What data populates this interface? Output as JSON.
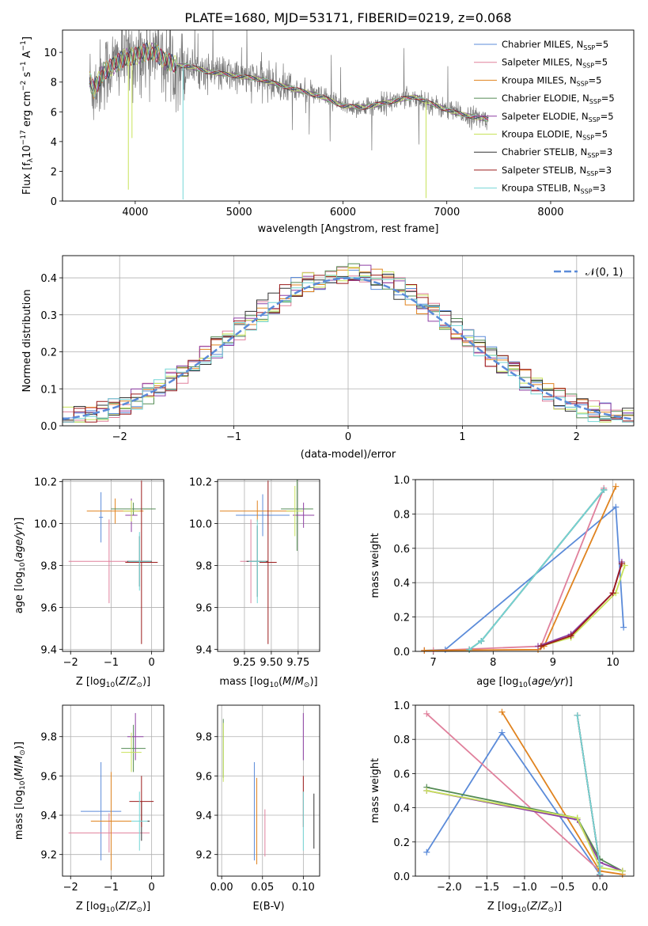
{
  "figure": {
    "title": "PLATE=1680, MJD=53171, FIBERID=0219, z=0.068"
  },
  "colors": {
    "Chabrier MILES": "#5b8bd9",
    "Salpeter MILES": "#e0809c",
    "Kroupa MILES": "#e0831f",
    "Chabrier ELODIE": "#548b54",
    "Salpeter ELODIE": "#8e3fa3",
    "Kroupa ELODIE": "#c8e35a",
    "Chabrier STELIB": "#333333",
    "Salpeter STELIB": "#9b1b1b",
    "Kroupa STELIB": "#74d6d6",
    "data": "#7a7a7a",
    "gaussian": "#5b8bd9"
  },
  "chart_data": [
    {
      "id": "spectrum",
      "type": "line",
      "title": "PLATE=1680, MJD=53171, FIBERID=0219, z=0.068",
      "xlabel": "wavelength [Angstrom, rest frame]",
      "ylabel": "Flux [f_λ 10^-17 erg cm^-2 s^-1 A^-1]",
      "xlim": [
        3300,
        8800
      ],
      "ylim": [
        0,
        11.5
      ],
      "xticks": [
        4000,
        5000,
        6000,
        7000,
        8000
      ],
      "yticks": [
        0,
        2,
        4,
        6,
        8,
        10
      ],
      "legend_position": "right",
      "grid": false,
      "continuum": {
        "x": [
          3560,
          3600,
          3700,
          3800,
          3900,
          4000,
          4100,
          4200,
          4300,
          4400,
          4500,
          4700,
          5000,
          5200,
          5500,
          5800,
          6000,
          6200,
          6400,
          6600,
          6700,
          6900,
          7100,
          7300,
          7400
        ],
        "y": [
          8.2,
          7.5,
          8.7,
          9.2,
          9.6,
          9.8,
          10.0,
          10.0,
          9.4,
          9.1,
          9.1,
          8.7,
          8.4,
          8.2,
          7.6,
          7.0,
          6.4,
          6.3,
          6.6,
          6.9,
          7.0,
          6.4,
          5.9,
          5.6,
          5.5
        ]
      },
      "absorption_lines": [
        {
          "x": 3934,
          "depth": 8.9,
          "series": "Kroupa ELODIE"
        },
        {
          "x": 3969,
          "depth": 5.5,
          "series": "Kroupa ELODIE"
        },
        {
          "x": 4460,
          "depth": 9.0,
          "series": "Kroupa STELIB"
        },
        {
          "x": 6800,
          "depth": 6.5,
          "series": "Kroupa ELODIE"
        }
      ],
      "series": [
        {
          "name": "Chabrier MILES, N_SSP=5",
          "key": "Chabrier MILES"
        },
        {
          "name": "Salpeter MILES, N_SSP=5",
          "key": "Salpeter MILES"
        },
        {
          "name": "Kroupa MILES, N_SSP=5",
          "key": "Kroupa MILES"
        },
        {
          "name": "Chabrier ELODIE, N_SSP=5",
          "key": "Chabrier ELODIE"
        },
        {
          "name": "Salpeter ELODIE, N_SSP=5",
          "key": "Salpeter ELODIE"
        },
        {
          "name": "Kroupa ELODIE, N_SSP=5",
          "key": "Kroupa ELODIE"
        },
        {
          "name": "Chabrier STELIB, N_SSP=3",
          "key": "Chabrier STELIB"
        },
        {
          "name": "Salpeter STELIB, N_SSP=3",
          "key": "Salpeter STELIB"
        },
        {
          "name": "Kroupa STELIB, N_SSP=3",
          "key": "Kroupa STELIB"
        }
      ]
    },
    {
      "id": "residuals",
      "type": "line",
      "xlabel": "(data-model)/error",
      "ylabel": "Normed distribution",
      "xlim": [
        -2.5,
        2.5
      ],
      "ylim": [
        0,
        0.46
      ],
      "xticks": [
        -2,
        -1,
        0,
        1,
        2
      ],
      "yticks": [
        0.0,
        0.1,
        0.2,
        0.3,
        0.4
      ],
      "grid": true,
      "legend": "𝒩(0, 1)",
      "legend_position": "top-right",
      "gaussian": {
        "mu": 0,
        "sigma": 1
      }
    },
    {
      "id": "age_vs_Z",
      "type": "scatter",
      "xlabel": "Z [log10(Z/Z⊙)]",
      "ylabel": "age [log10(age/yr)]",
      "xlim": [
        -2.2,
        0.3
      ],
      "ylim": [
        9.39,
        10.21
      ],
      "xticks": [
        -2,
        -1,
        0
      ],
      "yticks": [
        9.4,
        9.6,
        9.8,
        10.0,
        10.2
      ],
      "grid": true,
      "points": [
        {
          "series": "Chabrier MILES",
          "x": -1.25,
          "y": 10.03,
          "xerr": 0.05,
          "yerr": 0.12
        },
        {
          "series": "Salpeter MILES",
          "x": -1.05,
          "y": 9.82,
          "xerr": 1.0,
          "yerr": 0.2
        },
        {
          "series": "Kroupa MILES",
          "x": -0.9,
          "y": 10.06,
          "xerr": 0.7,
          "yerr": 0.06
        },
        {
          "series": "Chabrier ELODIE",
          "x": -0.45,
          "y": 10.07,
          "xerr": 0.55,
          "yerr": 0.03
        },
        {
          "series": "Salpeter ELODIE",
          "x": -0.5,
          "y": 10.04,
          "xerr": 0.15,
          "yerr": 0.08
        },
        {
          "series": "Kroupa ELODIE",
          "x": -0.5,
          "y": 10.06,
          "xerr": 0.2,
          "yerr": 0.05
        },
        {
          "series": "Chabrier STELIB",
          "x": -0.3,
          "y": 9.82,
          "xerr": 0.3,
          "yerr": 0.12
        },
        {
          "series": "Salpeter STELIB",
          "x": -0.25,
          "y": 9.815,
          "xerr": 0.4,
          "yerr": 0.39
        },
        {
          "series": "Kroupa STELIB",
          "x": -0.3,
          "y": 9.82,
          "xerr": 0.28,
          "yerr": 0.14
        }
      ]
    },
    {
      "id": "age_vs_mass",
      "type": "scatter",
      "xlabel": "mass [log10(M/M⊙)]",
      "xlim": [
        9.0,
        9.95
      ],
      "ylim": [
        9.39,
        10.21
      ],
      "xticks": [
        9.25,
        9.5,
        9.75
      ],
      "yticks": [
        9.4,
        9.6,
        9.8,
        10.0,
        10.2
      ],
      "grid": true,
      "points": [
        {
          "series": "Chabrier MILES",
          "x": 9.42,
          "y": 10.04,
          "xerr": 0.25,
          "yerr": 0.1
        },
        {
          "series": "Salpeter MILES",
          "x": 9.31,
          "y": 9.82,
          "xerr": 0.1,
          "yerr": 0.2
        },
        {
          "series": "Kroupa MILES",
          "x": 9.37,
          "y": 10.06,
          "xerr": 0.35,
          "yerr": 0.05
        },
        {
          "series": "Chabrier ELODIE",
          "x": 9.74,
          "y": 10.07,
          "xerr": 0.15,
          "yerr": 0.2
        },
        {
          "series": "Salpeter ELODIE",
          "x": 9.8,
          "y": 10.04,
          "xerr": 0.1,
          "yerr": 0.06
        },
        {
          "series": "Kroupa ELODIE",
          "x": 9.72,
          "y": 10.06,
          "xerr": 0.08,
          "yerr": 0.12
        },
        {
          "series": "Chabrier STELIB",
          "x": 9.37,
          "y": 9.82,
          "xerr": 0.1,
          "yerr": 0.17
        },
        {
          "series": "Salpeter STELIB",
          "x": 9.47,
          "y": 9.815,
          "xerr": 0.08,
          "yerr": 0.39
        },
        {
          "series": "Kroupa STELIB",
          "x": 9.37,
          "y": 9.82,
          "xerr": 0.08,
          "yerr": 0.2
        }
      ]
    },
    {
      "id": "weight_vs_age",
      "type": "line",
      "xlabel": "age [log10(age/yr)]",
      "ylabel": "mass weight",
      "xlim": [
        6.7,
        10.35
      ],
      "ylim": [
        0,
        1.0
      ],
      "xticks": [
        7,
        8,
        9,
        10
      ],
      "yticks": [
        0.0,
        0.2,
        0.4,
        0.6,
        0.8,
        1.0
      ],
      "grid": true,
      "series": [
        {
          "key": "Chabrier MILES",
          "x": [
            6.85,
            7.2,
            10.05,
            10.18
          ],
          "y": [
            0.005,
            0.01,
            0.84,
            0.14
          ]
        },
        {
          "key": "Salpeter MILES",
          "x": [
            6.85,
            7.0,
            8.8,
            9.85
          ],
          "y": [
            0.005,
            0.005,
            0.03,
            0.95
          ]
        },
        {
          "key": "Kroupa MILES",
          "x": [
            6.85,
            8.75,
            8.85,
            10.05
          ],
          "y": [
            0.005,
            0.01,
            0.03,
            0.96
          ]
        },
        {
          "key": "Chabrier ELODIE",
          "x": [
            7.6,
            7.8,
            9.85
          ],
          "y": [
            0.01,
            0.06,
            0.94
          ]
        },
        {
          "key": "Salpeter ELODIE",
          "x": [
            8.75,
            9.3,
            10.0,
            10.15
          ],
          "y": [
            0.03,
            0.1,
            0.34,
            0.52
          ]
        },
        {
          "key": "Kroupa ELODIE",
          "x": [
            8.8,
            9.3,
            10.05,
            10.2
          ],
          "y": [
            0.03,
            0.08,
            0.34,
            0.5
          ]
        },
        {
          "key": "Chabrier STELIB",
          "x": [
            7.6,
            7.8,
            9.85
          ],
          "y": [
            0.01,
            0.06,
            0.94
          ]
        },
        {
          "key": "Salpeter STELIB",
          "x": [
            8.8,
            9.3,
            10.0,
            10.15
          ],
          "y": [
            0.03,
            0.09,
            0.34,
            0.51
          ]
        },
        {
          "key": "Kroupa STELIB",
          "x": [
            7.6,
            7.8,
            9.85
          ],
          "y": [
            0.01,
            0.06,
            0.94
          ]
        }
      ]
    },
    {
      "id": "mass_vs_Z",
      "type": "scatter",
      "xlabel": "Z [log10(Z/Z⊙)]",
      "ylabel": "mass [log10(M/M⊙)]",
      "xlim": [
        -2.2,
        0.3
      ],
      "ylim": [
        9.09,
        9.96
      ],
      "xticks": [
        -2,
        -1,
        0
      ],
      "yticks": [
        9.2,
        9.4,
        9.6,
        9.8
      ],
      "grid": true,
      "points": [
        {
          "series": "Chabrier MILES",
          "x": -1.25,
          "y": 9.42,
          "xerr": 0.5,
          "yerr": 0.25
        },
        {
          "series": "Salpeter MILES",
          "x": -1.05,
          "y": 9.31,
          "xerr": 1.0,
          "yerr": 0.1
        },
        {
          "series": "Kroupa MILES",
          "x": -1.0,
          "y": 9.37,
          "xerr": 0.5,
          "yerr": 0.25
        },
        {
          "series": "Chabrier ELODIE",
          "x": -0.45,
          "y": 9.74,
          "xerr": 0.3,
          "yerr": 0.12
        },
        {
          "series": "Salpeter ELODIE",
          "x": -0.4,
          "y": 9.8,
          "xerr": 0.2,
          "yerr": 0.12
        },
        {
          "series": "Kroupa ELODIE",
          "x": -0.5,
          "y": 9.72,
          "xerr": 0.25,
          "yerr": 0.1
        },
        {
          "series": "Chabrier STELIB",
          "x": -0.25,
          "y": 9.37,
          "xerr": 0.2,
          "yerr": 0.1
        },
        {
          "series": "Salpeter STELIB",
          "x": -0.25,
          "y": 9.47,
          "xerr": 0.3,
          "yerr": 0.13
        },
        {
          "series": "Kroupa STELIB",
          "x": -0.3,
          "y": 9.37,
          "xerr": 0.2,
          "yerr": 0.15
        }
      ]
    },
    {
      "id": "mass_vs_EBV",
      "type": "scatter",
      "xlabel": "E(B-V)",
      "xlim": [
        -0.005,
        0.12
      ],
      "ylim": [
        9.09,
        9.96
      ],
      "xticks": [
        0.0,
        0.05,
        0.1
      ],
      "yticks": [
        9.2,
        9.4,
        9.6,
        9.8
      ],
      "grid": true,
      "points": [
        {
          "series": "Chabrier MILES",
          "x": 0.04,
          "y": 9.42,
          "yerr": 0.25
        },
        {
          "series": "Salpeter MILES",
          "x": 0.053,
          "y": 9.31,
          "yerr": 0.12
        },
        {
          "series": "Kroupa MILES",
          "x": 0.043,
          "y": 9.37,
          "yerr": 0.22
        },
        {
          "series": "Chabrier ELODIE",
          "x": 0.002,
          "y": 9.74,
          "yerr": 0.15
        },
        {
          "series": "Salpeter ELODIE",
          "x": 0.1,
          "y": 9.8,
          "yerr": 0.12
        },
        {
          "series": "Kroupa ELODIE",
          "x": 0.002,
          "y": 9.72,
          "yerr": 0.15
        },
        {
          "series": "Chabrier STELIB",
          "x": 0.113,
          "y": 9.37,
          "yerr": 0.14
        },
        {
          "series": "Salpeter STELIB",
          "x": 0.1,
          "y": 9.47,
          "yerr": 0.13
        },
        {
          "series": "Kroupa STELIB",
          "x": 0.1,
          "y": 9.37,
          "yerr": 0.15
        }
      ]
    },
    {
      "id": "weight_vs_Z",
      "type": "line",
      "xlabel": "Z [log10(Z/Z⊙)]",
      "ylabel": "mass weight",
      "xlim": [
        -2.45,
        0.45
      ],
      "ylim": [
        0,
        1.0
      ],
      "xticks": [
        -2.0,
        -1.5,
        -1.0,
        -0.5,
        0.0
      ],
      "yticks": [
        0.0,
        0.2,
        0.4,
        0.6,
        0.8,
        1.0
      ],
      "grid": true,
      "series": [
        {
          "key": "Chabrier MILES",
          "x": [
            -2.3,
            -1.3,
            0.0,
            0.0
          ],
          "y": [
            0.14,
            0.84,
            0.01,
            0.005
          ]
        },
        {
          "key": "Salpeter MILES",
          "x": [
            -2.3,
            0.0,
            0.0
          ],
          "y": [
            0.95,
            0.03,
            0.005
          ]
        },
        {
          "key": "Kroupa MILES",
          "x": [
            -1.3,
            0.0,
            0.3
          ],
          "y": [
            0.96,
            0.03,
            0.01
          ]
        },
        {
          "key": "Chabrier ELODIE",
          "x": [
            -2.3,
            -0.3,
            0.0,
            0.3
          ],
          "y": [
            0.52,
            0.34,
            0.1,
            0.03
          ]
        },
        {
          "key": "Salpeter ELODIE",
          "x": [
            -2.3,
            -0.3,
            0.0,
            0.3
          ],
          "y": [
            0.5,
            0.33,
            0.08,
            0.03
          ]
        },
        {
          "key": "Kroupa ELODIE",
          "x": [
            -2.3,
            -0.3,
            0.0,
            0.3
          ],
          "y": [
            0.5,
            0.34,
            0.05,
            0.03
          ]
        },
        {
          "key": "Chabrier STELIB",
          "x": [
            -0.3,
            0.0,
            0.0
          ],
          "y": [
            0.94,
            0.06,
            0.01
          ]
        },
        {
          "key": "Salpeter STELIB",
          "x": [
            -0.3,
            0.0,
            0.0
          ],
          "y": [
            0.94,
            0.06,
            0.01
          ]
        },
        {
          "key": "Kroupa STELIB",
          "x": [
            -0.3,
            0.0,
            0.0
          ],
          "y": [
            0.94,
            0.06,
            0.01
          ]
        }
      ]
    }
  ]
}
